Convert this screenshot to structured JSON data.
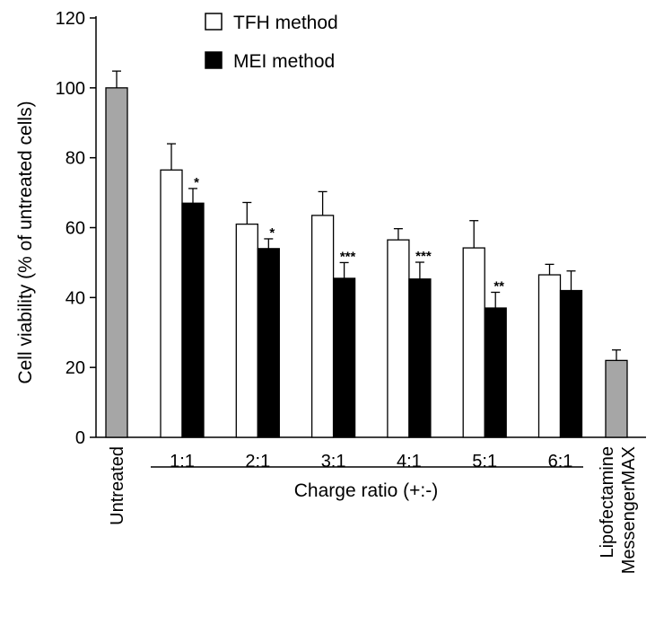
{
  "chart_data": {
    "type": "bar",
    "ylabel": "Cell viability (% of untreated cells)",
    "ylim": [
      0,
      120
    ],
    "yticks": [
      0,
      20,
      40,
      60,
      80,
      100,
      120
    ],
    "group_axis_label": "Charge ratio (+:-)",
    "legend": {
      "placement": "top",
      "entries": [
        {
          "name": "TFH method",
          "color": "#ffffff"
        },
        {
          "name": "MEI method",
          "color": "#000000"
        }
      ]
    },
    "controls": [
      {
        "label": "Untreated",
        "value": 100,
        "error": 4.8,
        "color": "#a6a6a6"
      },
      {
        "label": "Lipofectamine MessengerMAX",
        "value": 22,
        "error": 3.0,
        "color": "#a6a6a6"
      }
    ],
    "categories": [
      "1:1",
      "2:1",
      "3:1",
      "4:1",
      "5:1",
      "6:1"
    ],
    "series": [
      {
        "name": "TFH method",
        "color": "#ffffff",
        "values": [
          76.5,
          61,
          63.5,
          56.5,
          54.2,
          46.5
        ],
        "errors": [
          7.5,
          6.2,
          6.8,
          3.2,
          7.8,
          3.0
        ],
        "significance": [
          "",
          "",
          "",
          "",
          "",
          ""
        ]
      },
      {
        "name": "MEI method",
        "color": "#000000",
        "values": [
          67,
          54,
          45.5,
          45.3,
          37,
          42
        ],
        "errors": [
          4.2,
          2.8,
          4.5,
          4.8,
          4.5,
          5.6
        ],
        "significance": [
          "*",
          "*",
          "***",
          "***",
          "**",
          ""
        ]
      }
    ]
  }
}
